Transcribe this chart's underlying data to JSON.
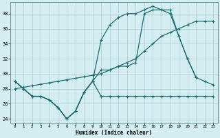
{
  "xlabel": "Humidex (Indice chaleur)",
  "bg_color": "#d4edf0",
  "grid_color": "#aacdd2",
  "line_color": "#1a6b6b",
  "xlim": [
    -0.5,
    23.5
  ],
  "ylim": [
    23.5,
    39.5
  ],
  "xticks": [
    0,
    1,
    2,
    3,
    4,
    5,
    6,
    7,
    8,
    9,
    10,
    11,
    12,
    13,
    14,
    15,
    16,
    17,
    18,
    19,
    20,
    21,
    22,
    23
  ],
  "yticks": [
    24,
    26,
    28,
    30,
    32,
    34,
    36,
    38
  ],
  "curves": [
    {
      "x": [
        0,
        1,
        2,
        3,
        4,
        5,
        6,
        7,
        8,
        9,
        10,
        11,
        12,
        13,
        14,
        15,
        16,
        17,
        18,
        19,
        20,
        21,
        22,
        23
      ],
      "y": [
        29,
        28,
        27,
        27,
        26.5,
        25.5,
        24,
        25,
        27.5,
        29,
        27,
        27,
        27,
        27,
        27,
        27,
        27,
        27,
        27,
        27,
        27,
        27,
        27,
        27
      ]
    },
    {
      "x": [
        0,
        1,
        2,
        3,
        4,
        5,
        6,
        7,
        8,
        9,
        10,
        11,
        12,
        13,
        14,
        15,
        16,
        17,
        18,
        19,
        20,
        21,
        22,
        23
      ],
      "y": [
        28,
        28.2,
        28.4,
        28.6,
        28.8,
        29,
        29.2,
        29.4,
        29.6,
        29.8,
        30,
        30.5,
        31,
        31.5,
        32,
        33,
        34,
        35,
        35.5,
        36,
        36.5,
        37,
        37,
        37
      ]
    },
    {
      "x": [
        0,
        1,
        2,
        3,
        4,
        5,
        6,
        7,
        8,
        9,
        10,
        11,
        12,
        13,
        14,
        15,
        16,
        17,
        18,
        19,
        20,
        21
      ],
      "y": [
        29,
        28,
        27,
        27,
        26.5,
        25.5,
        24,
        25,
        27.5,
        29,
        34.5,
        36.5,
        37.5,
        38,
        38,
        38.5,
        39,
        38.5,
        38,
        35,
        32,
        29.5
      ]
    },
    {
      "x": [
        0,
        1,
        2,
        3,
        4,
        5,
        6,
        7,
        8,
        9,
        10,
        11,
        12,
        13,
        14,
        15,
        16,
        17,
        18,
        19,
        20,
        21,
        22,
        23
      ],
      "y": [
        29,
        28,
        27,
        27,
        26.5,
        25.5,
        24,
        25,
        27.5,
        29,
        30.5,
        30.5,
        31,
        31,
        31.5,
        38,
        38.5,
        38.5,
        38.5,
        35,
        32,
        29.5,
        29,
        28.5
      ]
    }
  ]
}
